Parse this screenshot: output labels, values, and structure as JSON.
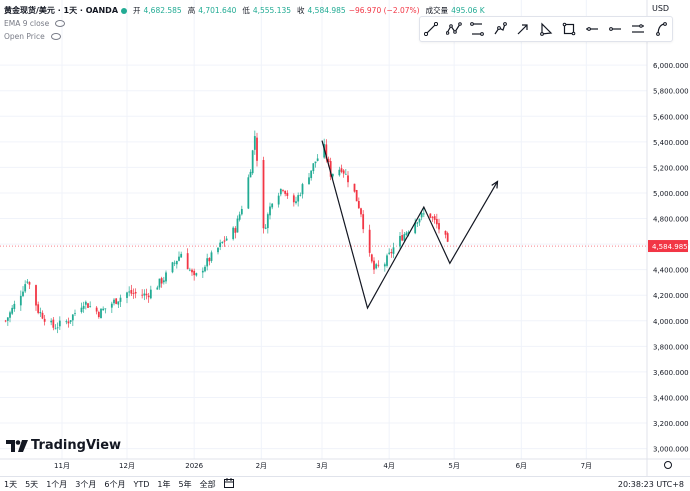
{
  "header": {
    "symbol": "黄金现货/美元 · 1天 · OANDA",
    "open_label": "开",
    "open": "4,682.585",
    "high_label": "高",
    "high": "4,701.640",
    "low_label": "低",
    "low": "4,555.135",
    "close_label": "收",
    "close": "4,584.985",
    "change": "−96.970 (−2.07%)",
    "volume_label": "成交量",
    "volume": "495.06 K",
    "indicator_1": "EMA 9 close",
    "indicator_2": "Open Price",
    "currency": "USD"
  },
  "toolbar": {
    "tools": [
      "trend-line-icon",
      "zigzag-icon",
      "path-icon",
      "polyline-icon",
      "arrow-line-icon",
      "brush-icon",
      "rectangle-icon",
      "horizontal-line-icon",
      "ray-icon",
      "extended-line-icon",
      "curve-icon"
    ]
  },
  "colors": {
    "up": "#22ab94",
    "down": "#f23645",
    "price_label": "#f23645",
    "grid": "#f0f3fa"
  },
  "chart_data": {
    "type": "candlestick",
    "title": "黄金现货/美元 · 1天 · OANDA",
    "y_ticks": [
      "6,000.000",
      "5,800.000",
      "5,600.000",
      "5,400.000",
      "5,200.000",
      "5,000.000",
      "4,800.000",
      "4,600.000",
      "4,400.000",
      "4,200.000",
      "4,000.000",
      "3,800.000",
      "3,600.000",
      "3,400.000",
      "3,200.000",
      "3,000.000"
    ],
    "ylim": [
      2950,
      6150
    ],
    "current_price": "4,584.985",
    "x_ticks": [
      {
        "label": "11月",
        "date": "2025-11-01"
      },
      {
        "label": "12月",
        "date": "2025-12-01"
      },
      {
        "label": "2026",
        "date": "2026-01-01"
      },
      {
        "label": "2月",
        "date": "2026-02-01"
      },
      {
        "label": "3月",
        "date": "2026-03-01"
      },
      {
        "label": "4月",
        "date": "2026-04-01"
      },
      {
        "label": "5月",
        "date": "2026-05-01"
      },
      {
        "label": "6月",
        "date": "2026-06-01"
      },
      {
        "label": "7月",
        "date": "2026-07-01"
      }
    ],
    "close_path": [
      {
        "date": "2025-10-06",
        "close": 4000
      },
      {
        "date": "2025-10-12",
        "close": 4180
      },
      {
        "date": "2025-10-16",
        "close": 4330
      },
      {
        "date": "2025-10-21",
        "close": 4080
      },
      {
        "date": "2025-10-28",
        "close": 3950
      },
      {
        "date": "2025-11-04",
        "close": 4000
      },
      {
        "date": "2025-11-11",
        "close": 4150
      },
      {
        "date": "2025-11-18",
        "close": 4060
      },
      {
        "date": "2025-11-25",
        "close": 4150
      },
      {
        "date": "2025-12-01",
        "close": 4220
      },
      {
        "date": "2025-12-10",
        "close": 4200
      },
      {
        "date": "2025-12-18",
        "close": 4330
      },
      {
        "date": "2025-12-26",
        "close": 4530
      },
      {
        "date": "2026-01-01",
        "close": 4330
      },
      {
        "date": "2026-01-07",
        "close": 4460
      },
      {
        "date": "2026-01-14",
        "close": 4610
      },
      {
        "date": "2026-01-20",
        "close": 4720
      },
      {
        "date": "2026-01-24",
        "close": 4950
      },
      {
        "date": "2026-01-27",
        "close": 5200
      },
      {
        "date": "2026-01-29",
        "close": 5450
      },
      {
        "date": "2026-01-31",
        "close": 5100
      },
      {
        "date": "2026-02-02",
        "close": 4700
      },
      {
        "date": "2026-02-06",
        "close": 4950
      },
      {
        "date": "2026-02-11",
        "close": 5050
      },
      {
        "date": "2026-02-16",
        "close": 4900
      },
      {
        "date": "2026-02-20",
        "close": 5050
      },
      {
        "date": "2026-02-26",
        "close": 5250
      },
      {
        "date": "2026-03-02",
        "close": 5350
      },
      {
        "date": "2026-03-05",
        "close": 5150
      },
      {
        "date": "2026-03-10",
        "close": 5200
      },
      {
        "date": "2026-03-15",
        "close": 5050
      },
      {
        "date": "2026-03-19",
        "close": 4850
      },
      {
        "date": "2026-03-22",
        "close": 4550
      },
      {
        "date": "2026-03-25",
        "close": 4400
      },
      {
        "date": "2026-03-30",
        "close": 4450
      },
      {
        "date": "2026-04-04",
        "close": 4600
      },
      {
        "date": "2026-04-09",
        "close": 4700
      },
      {
        "date": "2026-04-14",
        "close": 4800
      },
      {
        "date": "2026-04-19",
        "close": 4850
      },
      {
        "date": "2026-04-23",
        "close": 4750
      },
      {
        "date": "2026-04-27",
        "close": 4640
      },
      {
        "date": "2026-04-28",
        "close": 4585
      }
    ],
    "projection_path": [
      {
        "date": "2026-03-01",
        "price": 5410
      },
      {
        "date": "2026-03-22",
        "price": 4100
      },
      {
        "date": "2026-04-17",
        "price": 4890
      },
      {
        "date": "2026-04-29",
        "price": 4450
      },
      {
        "date": "2026-05-21",
        "price": 5090
      }
    ]
  },
  "bottom": {
    "timeframes": [
      "1天",
      "5天",
      "1个月",
      "3个月",
      "6个月",
      "YTD",
      "1年",
      "5年",
      "全部"
    ],
    "clock": "20:38:23 UTC+8"
  },
  "logo_text": "TradingView"
}
